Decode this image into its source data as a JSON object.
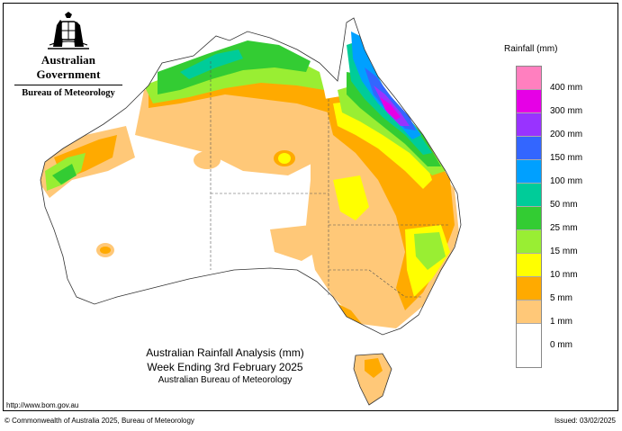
{
  "header": {
    "government": "Australian Government",
    "agency": "Bureau of Meteorology"
  },
  "legend": {
    "title": "Rainfall (mm)",
    "items": [
      {
        "label": "400 mm",
        "color": "#ff7fbf"
      },
      {
        "label": "300 mm",
        "color": "#e600e6"
      },
      {
        "label": "200 mm",
        "color": "#9933ff"
      },
      {
        "label": "150 mm",
        "color": "#3366ff"
      },
      {
        "label": "100 mm",
        "color": "#00a0ff"
      },
      {
        "label": "50 mm",
        "color": "#00cc99"
      },
      {
        "label": "25 mm",
        "color": "#33cc33"
      },
      {
        "label": "15 mm",
        "color": "#99ee33"
      },
      {
        "label": "10 mm",
        "color": "#ffff00"
      },
      {
        "label": "5 mm",
        "color": "#ffaa00"
      },
      {
        "label": "1 mm",
        "color": "#ffc878"
      },
      {
        "label": "0 mm",
        "color": "#ffffff"
      }
    ]
  },
  "map": {
    "title_line1": "Australian Rainfall Analysis (mm)",
    "title_line2": "Week Ending 3rd February 2025",
    "title_line3": "Australian Bureau of Meteorology",
    "region": "Australia"
  },
  "footer": {
    "url": "http://www.bom.gov.au",
    "copyright": "© Commonwealth of Australia 2025, Bureau of Meteorology",
    "issued": "Issued: 03/02/2025"
  }
}
